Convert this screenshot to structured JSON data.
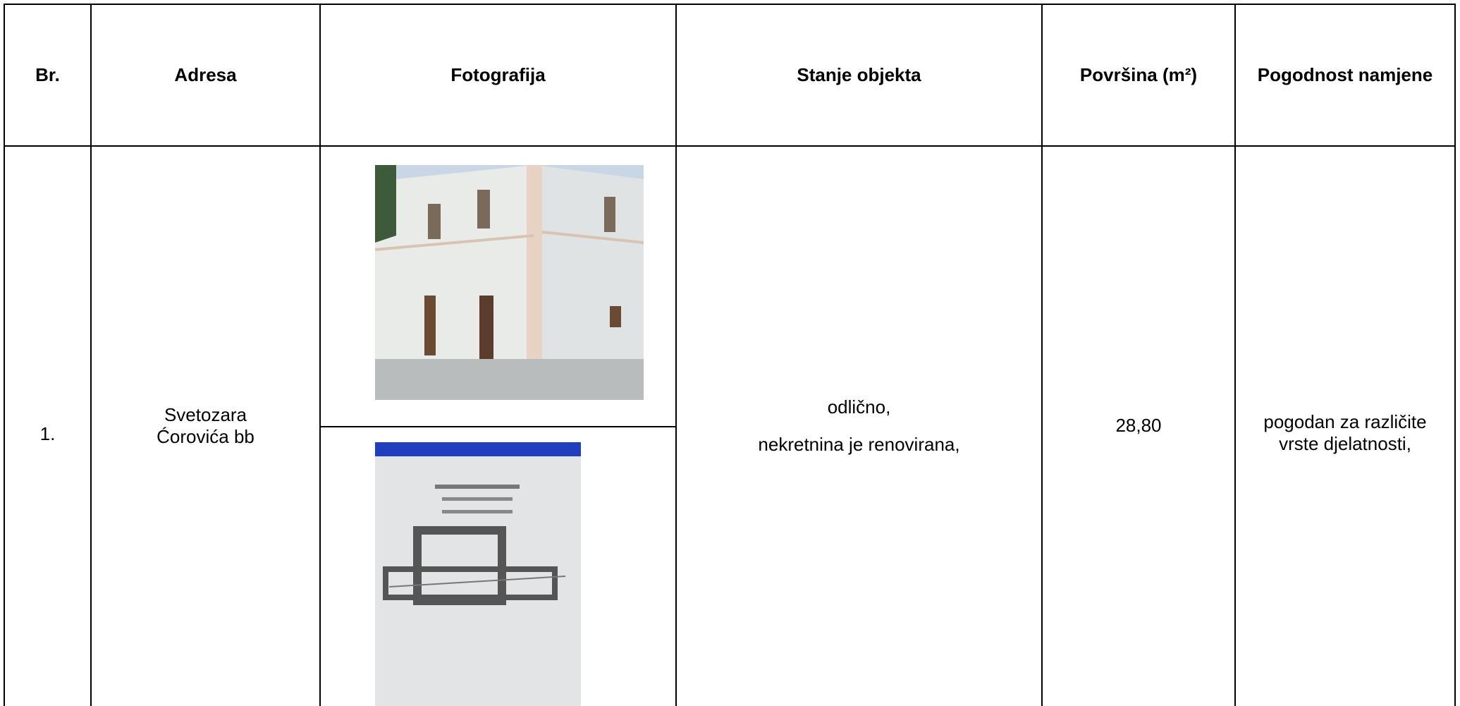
{
  "table": {
    "header": [
      "Br.",
      "Adresa",
      "Fotografija",
      "Stanje objekta",
      "Površina (m²)",
      "Pogodnost namjene"
    ],
    "rows": [
      [
        "1.",
        "Svetozara Ćorovića bb",
        "",
        [
          "odlično,",
          "nekretnina je renovirana,"
        ],
        "28,80",
        "pogodan za različite vrste djelatnosti,"
      ]
    ]
  }
}
